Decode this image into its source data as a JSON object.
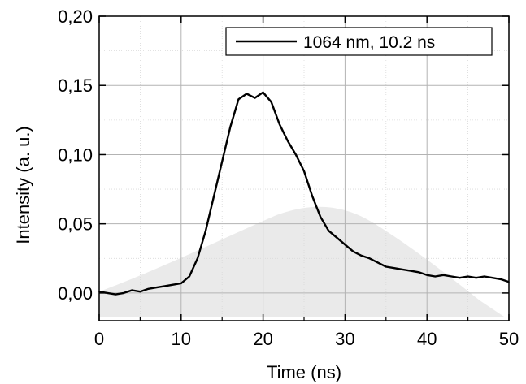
{
  "chart_data": {
    "type": "line",
    "xlabel": "Time (ns)",
    "ylabel": "Intensity (a. u.)",
    "xlim": [
      0,
      50
    ],
    "ylim": [
      -0.02,
      0.2
    ],
    "x_ticks": [
      0,
      10,
      20,
      30,
      40,
      50
    ],
    "x_tick_labels": [
      "0",
      "10",
      "20",
      "30",
      "40",
      "50"
    ],
    "y_ticks": [
      0.0,
      0.05,
      0.1,
      0.15,
      0.2
    ],
    "y_tick_labels": [
      "0,00",
      "0,05",
      "0,10",
      "0,15",
      "0,20"
    ],
    "grid": true,
    "legend_position": "top-right",
    "series": [
      {
        "name": "1064 nm, 10.2 ns",
        "color": "#000000",
        "x": [
          0,
          1,
          2,
          3,
          4,
          5,
          6,
          7,
          8,
          9,
          10,
          11,
          12,
          13,
          14,
          15,
          16,
          17,
          18,
          19,
          20,
          21,
          22,
          23,
          24,
          25,
          26,
          27,
          28,
          29,
          30,
          31,
          32,
          33,
          34,
          35,
          36,
          37,
          38,
          39,
          40,
          41,
          42,
          43,
          44,
          45,
          46,
          47,
          48,
          49,
          50
        ],
        "y": [
          0.001,
          0.0,
          -0.001,
          0.0,
          0.002,
          0.001,
          0.003,
          0.004,
          0.005,
          0.006,
          0.007,
          0.012,
          0.025,
          0.045,
          0.07,
          0.095,
          0.12,
          0.14,
          0.144,
          0.141,
          0.145,
          0.138,
          0.122,
          0.11,
          0.1,
          0.088,
          0.07,
          0.055,
          0.045,
          0.04,
          0.035,
          0.03,
          0.027,
          0.025,
          0.022,
          0.019,
          0.018,
          0.017,
          0.016,
          0.015,
          0.013,
          0.012,
          0.013,
          0.012,
          0.011,
          0.012,
          0.011,
          0.012,
          0.011,
          0.01,
          0.008
        ]
      }
    ]
  }
}
